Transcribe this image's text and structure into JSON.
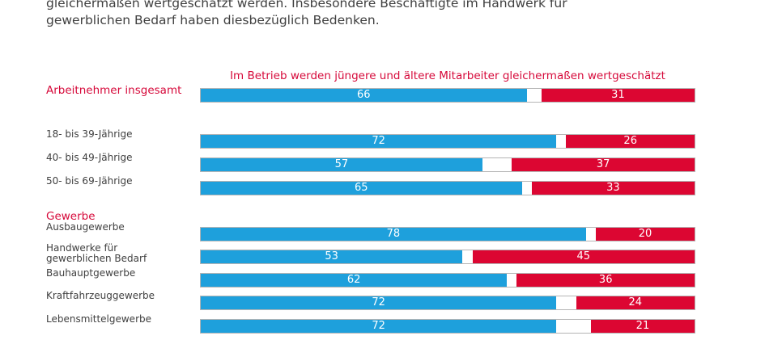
{
  "intro": {
    "line1": "gleichermaßen wertgeschätzt werden. Insbesondere Beschäftigte im Handwerk für",
    "line2": "gewerblichen Bedarf haben diesbezüglich Bedenken."
  },
  "colors": {
    "agree": "#1ea0dc",
    "disagree": "#dc0632",
    "accent_text": "#d6093a"
  },
  "chart_data": {
    "type": "bar",
    "orientation": "horizontal",
    "stacked": true,
    "title": "Im Betrieb werden jüngere und ältere Mitarbeiter gleichermaßen wertgeschätzt",
    "scale": [
      0,
      100
    ],
    "groups": [
      {
        "label": "",
        "rows": [
          {
            "label": "Arbeitnehmer insgesamt",
            "values": [
              66,
              31
            ],
            "highlight": true
          }
        ]
      },
      {
        "label": "",
        "rows": [
          {
            "label": "18- bis 39-Jährige",
            "values": [
              72,
              26
            ]
          },
          {
            "label": "40- bis 49-Jährige",
            "values": [
              57,
              37
            ]
          },
          {
            "label": "50- bis 69-Jährige",
            "values": [
              65,
              33
            ]
          }
        ]
      },
      {
        "label": "Gewerbe",
        "rows": [
          {
            "label": "Ausbaugewerbe",
            "values": [
              78,
              20
            ]
          },
          {
            "label": "Handwerke für gewerblichen Bedarf",
            "label_lines": [
              "Handwerke für",
              "gewerblichen Bedarf"
            ],
            "values": [
              53,
              45
            ]
          },
          {
            "label": "Bauhauptgewerbe",
            "values": [
              62,
              36
            ]
          },
          {
            "label": "Kraftfahrzeuggewerbe",
            "values": [
              72,
              24
            ]
          },
          {
            "label": "Lebensmittelgewerbe",
            "values": [
              72,
              21
            ]
          }
        ]
      }
    ]
  }
}
